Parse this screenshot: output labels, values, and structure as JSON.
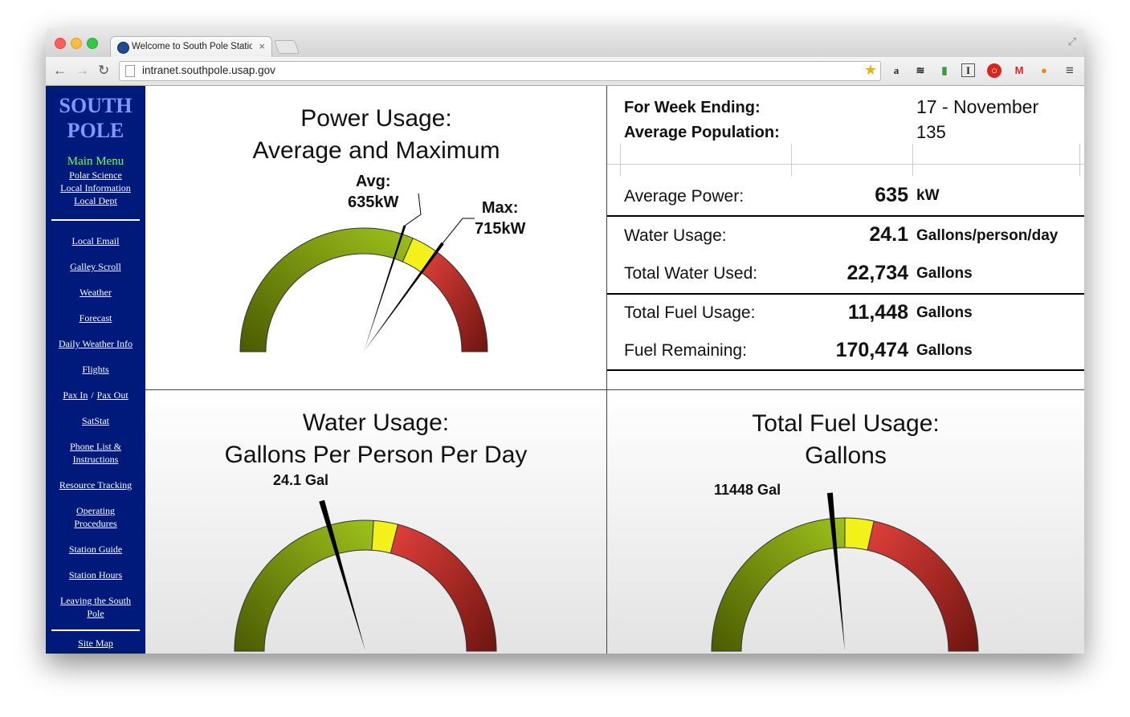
{
  "browser": {
    "tab_title": "Welcome to South Pole Statio",
    "tab_close": "×",
    "url": "intranet.southpole.usap.gov",
    "nav_back": "←",
    "nav_forward": "→",
    "nav_reload": "↻",
    "bookmark_star": "★",
    "menu_glyph": "≡"
  },
  "sidebar": {
    "logo_line1": "SOUTH",
    "logo_line2": "POLE",
    "main_menu": "Main Menu",
    "top_links": [
      "Polar Science",
      "Local Information",
      "Local Dept"
    ],
    "links": [
      "Local Email",
      "Galley Scroll",
      "Weather",
      "Forecast",
      "Daily Weather Info",
      "Flights"
    ],
    "pax_in": "Pax In",
    "pax_sep": "/",
    "pax_out": "Pax Out",
    "links2": [
      "SatStat"
    ],
    "phone_list_1": "Phone List &",
    "phone_list_2": "Instructions",
    "resource_tracking": "Resource Tracking",
    "operating_1": "Operating",
    "operating_2": "Procedures",
    "station_guide": "Station Guide",
    "station_hours": "Station Hours",
    "leaving_1": "Leaving the South",
    "leaving_2": "Pole",
    "site_map": "Site Map"
  },
  "power": {
    "title1": "Power Usage:",
    "title2": "Average and Maximum",
    "avg_label": "Avg:",
    "avg_value": "635kW",
    "max_label": "Max:",
    "max_value": "715kW",
    "avg_fraction": 0.6,
    "max_fraction": 0.7
  },
  "stats": {
    "week_label": "For Week Ending:",
    "week_value": "17 - November",
    "pop_label": "Average Population:",
    "pop_value": "135",
    "avg_power_label": "Average Power:",
    "avg_power_value": "635",
    "avg_power_unit": "kW",
    "water_label": "Water Usage:",
    "water_value": "24.1",
    "water_unit": "Gallons/person/day",
    "total_water_label": "Total Water Used:",
    "total_water_value": "22,734",
    "total_water_unit": "Gallons",
    "fuel_label": "Total Fuel Usage:",
    "fuel_value": "11,448",
    "fuel_unit": "Gallons",
    "fuel_remaining_label": "Fuel Remaining:",
    "fuel_remaining_value": "170,474",
    "fuel_remaining_unit": "Gallons"
  },
  "water": {
    "title1": "Water Usage:",
    "title2": "Gallons Per Person Per Day",
    "needle_label": "24.1 Gal",
    "needle_fraction": 0.41
  },
  "fuel": {
    "title1": "Total Fuel Usage:",
    "title2": "Gallons",
    "needle_label": "11448 Gal",
    "needle_fraction": 0.47
  },
  "colors": {
    "sidebar_bg": "#001a7c",
    "logo": "#7f9aff",
    "menu_title": "#66ff66",
    "gauge_green_dark": "#4a5a00",
    "gauge_green_light": "#9dc21c",
    "gauge_yellow": "#f2f21a",
    "gauge_red_light": "#e2403a",
    "gauge_red_dark": "#6e1410"
  }
}
